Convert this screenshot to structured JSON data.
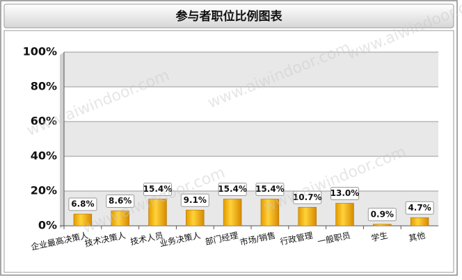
{
  "chart_data": {
    "type": "bar",
    "title": "参与者职位比例图表",
    "watermark": "www.aiwindoor.com",
    "categories": [
      "企业最高决策人",
      "技术决策人",
      "技术人员",
      "业务决策人",
      "部门经理",
      "市场/销售",
      "行政管理",
      "一般职员",
      "学生",
      "其他"
    ],
    "values": [
      6.8,
      8.6,
      15.4,
      9.1,
      15.4,
      15.4,
      10.7,
      13.0,
      0.9,
      4.7
    ],
    "value_labels": [
      "6.8%",
      "8.6%",
      "15.4%",
      "9.1%",
      "15.4%",
      "15.4%",
      "10.7%",
      "13.0%",
      "0.9%",
      "4.7%"
    ],
    "color": "#f2b400",
    "ylim": [
      0,
      100
    ],
    "yticks": [
      {
        "value": 0,
        "label": "0%"
      },
      {
        "value": 20,
        "label": "20%"
      },
      {
        "value": 40,
        "label": "40%"
      },
      {
        "value": 60,
        "label": "60%"
      },
      {
        "value": 80,
        "label": "80%"
      },
      {
        "value": 100,
        "label": "100%"
      }
    ],
    "grid": true
  }
}
